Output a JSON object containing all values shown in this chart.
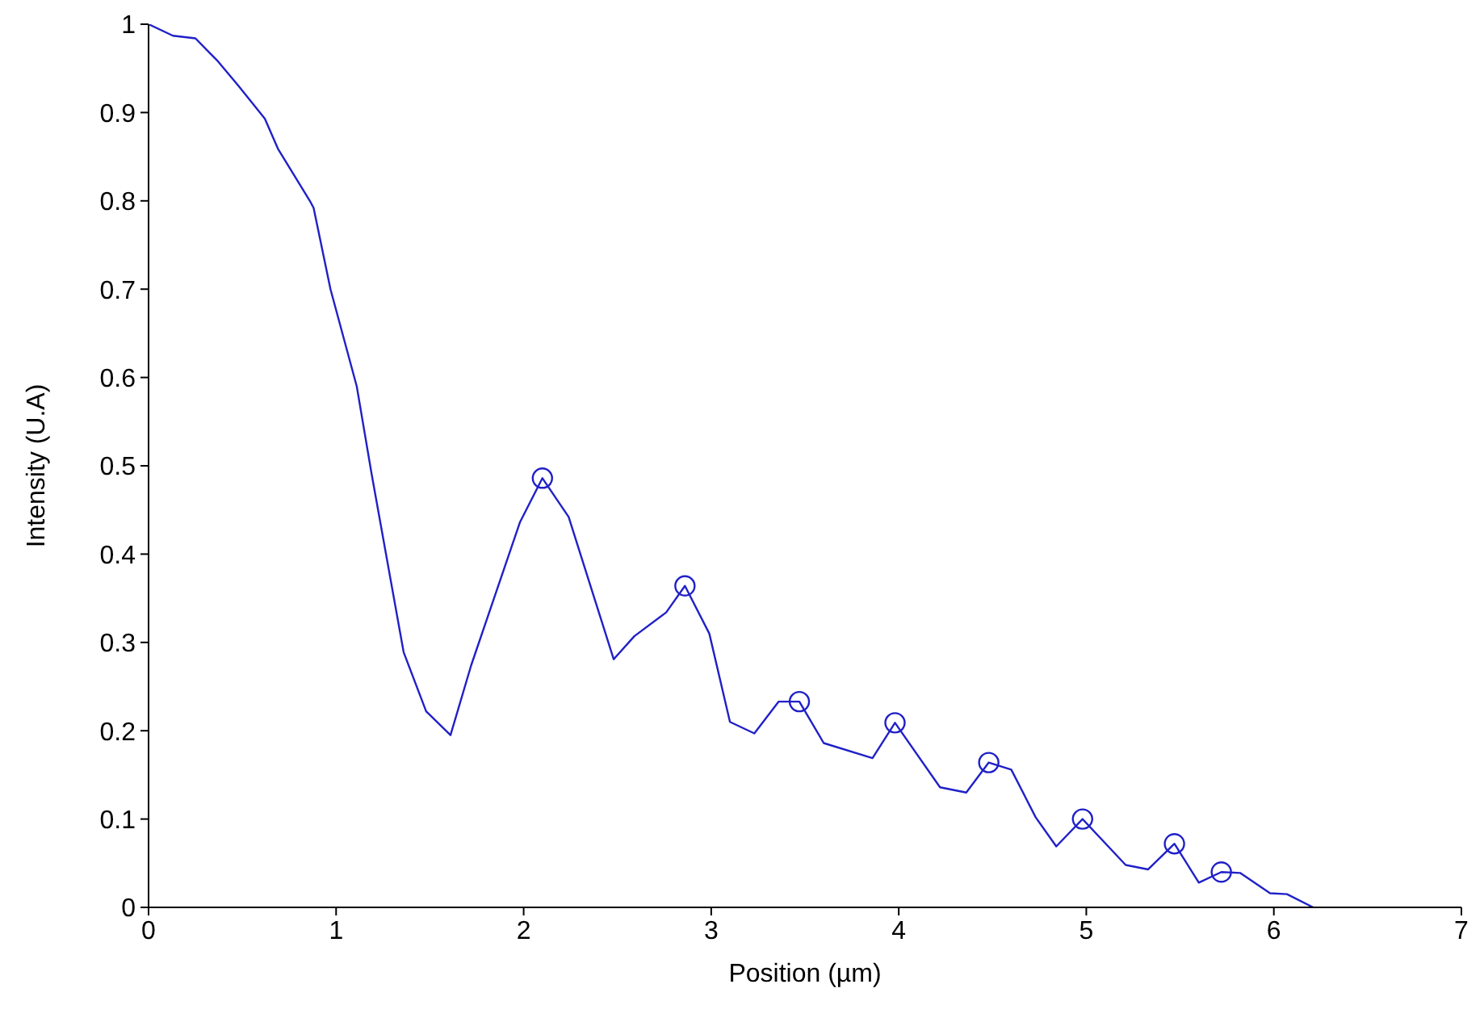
{
  "chart_data": {
    "type": "line",
    "xlabel": "Position (µm)",
    "ylabel": "Intensity (U.A)",
    "xlim": [
      0,
      7
    ],
    "ylim": [
      0,
      1
    ],
    "xticks": [
      0,
      1,
      2,
      3,
      4,
      5,
      6,
      7
    ],
    "yticks": [
      0,
      0.1,
      0.2,
      0.3,
      0.4,
      0.5,
      0.6,
      0.7,
      0.8,
      0.9,
      1
    ],
    "grid": false,
    "series": [
      {
        "type": "line",
        "color": "#2020c8",
        "marker": "none",
        "x": [
          0,
          0.13,
          0.25,
          0.37,
          0.48,
          0.62,
          0.69,
          0.86,
          0.88,
          0.97,
          1.11,
          1.19,
          1.36,
          1.48,
          1.61,
          1.72,
          1.98,
          2.1,
          2.24,
          2.48,
          2.59,
          2.76,
          2.86,
          2.99,
          3.1,
          3.23,
          3.36,
          3.47,
          3.6,
          3.86,
          3.98,
          4.22,
          4.36,
          4.48,
          4.6,
          4.73,
          4.84,
          4.98,
          5.21,
          5.33,
          5.47,
          5.6,
          5.72,
          5.82,
          5.98,
          6.07,
          6.21
        ],
        "values": [
          1,
          0.987,
          0.984,
          0.958,
          0.93,
          0.893,
          0.859,
          0.8,
          0.792,
          0.7,
          0.59,
          0.49,
          0.289,
          0.222,
          0.195,
          0.274,
          0.436,
          0.486,
          0.442,
          0.281,
          0.307,
          0.334,
          0.364,
          0.31,
          0.21,
          0.197,
          0.233,
          0.233,
          0.186,
          0.169,
          0.209,
          0.136,
          0.13,
          0.164,
          0.156,
          0.102,
          0.069,
          0.1,
          0.048,
          0.043,
          0.072,
          0.028,
          0.04,
          0.039,
          0.016,
          0.015,
          0
        ]
      },
      {
        "type": "scatter",
        "color": "#2020c8",
        "marker": "circle",
        "x": [
          2.1,
          2.86,
          3.47,
          3.98,
          4.48,
          4.98,
          5.47,
          5.72
        ],
        "values": [
          0.486,
          0.364,
          0.233,
          0.209,
          0.164,
          0.1,
          0.072,
          0.04
        ]
      }
    ]
  }
}
